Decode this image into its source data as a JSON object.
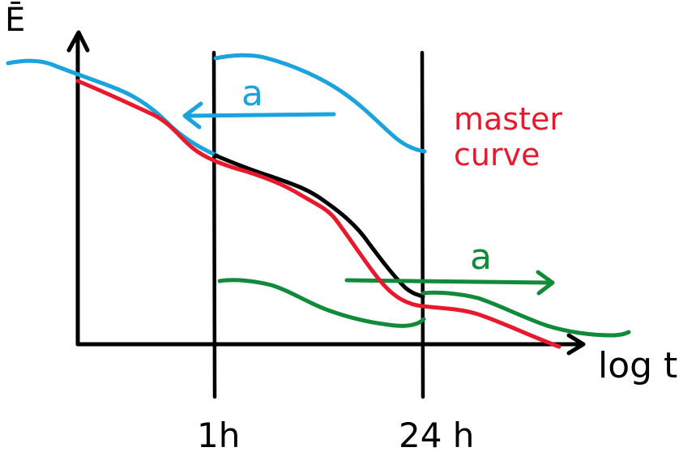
{
  "axes": {
    "y_label": "Ē",
    "x_label": "log t"
  },
  "markers": {
    "left_label": "1h",
    "right_label": "24 h"
  },
  "master_curve": {
    "label_line1": "master",
    "label_line2": "curve",
    "color": "#e8192c"
  },
  "shift_arrows": {
    "upper_label": "a",
    "lower_label": "a"
  },
  "colors": {
    "ink": "#000000",
    "short_term_curve": "#1aa3dc",
    "long_term_curve": "#118a3a",
    "measured_segment": "#000000"
  }
}
